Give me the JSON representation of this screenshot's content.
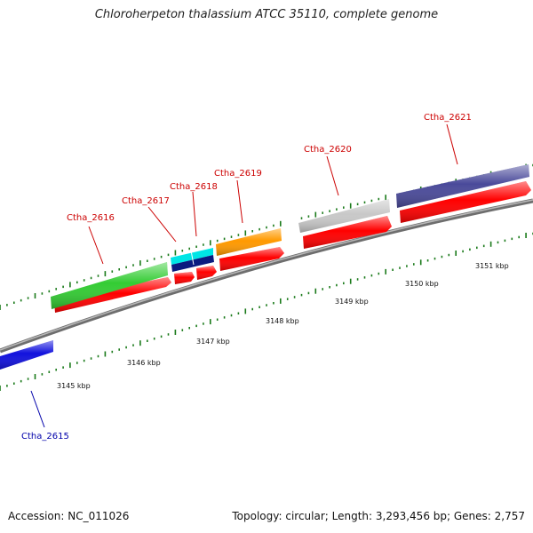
{
  "title": "Chloroherpeton thalassium ATCC 35110, complete genome",
  "footer": {
    "accession": "Accession: NC_011026",
    "summary": "Topology: circular; Length: 3,293,456 bp; Genes: 2,757"
  },
  "colors": {
    "label_forward": "#cc0000",
    "label_reverse": "#0000aa",
    "tick": "#1a7a1a",
    "backbone": "#8a8a8a",
    "cds": "#ff0000"
  },
  "scale_labels": [
    "3145 kbp",
    "3146 kbp",
    "3147 kbp",
    "3148 kbp",
    "3149 kbp",
    "3150 kbp",
    "3151 kbp"
  ],
  "genes": [
    {
      "label": "Ctha_2615",
      "strand": "reverse",
      "color": "#1111dd"
    },
    {
      "label": "Ctha_2616",
      "strand": "forward",
      "color": "#33cc33"
    },
    {
      "label": "Ctha_2617",
      "strand": "forward",
      "color": "#00e5e5"
    },
    {
      "label": "Ctha_2618",
      "strand": "forward",
      "color": "#0a1a80"
    },
    {
      "label": "Ctha_2619",
      "strand": "forward",
      "color": "#ff9900"
    },
    {
      "label": "Ctha_2620",
      "strand": "forward",
      "color": "#c8c8c8"
    },
    {
      "label": "Ctha_2621",
      "strand": "forward",
      "color": "#4a4a9a"
    }
  ]
}
